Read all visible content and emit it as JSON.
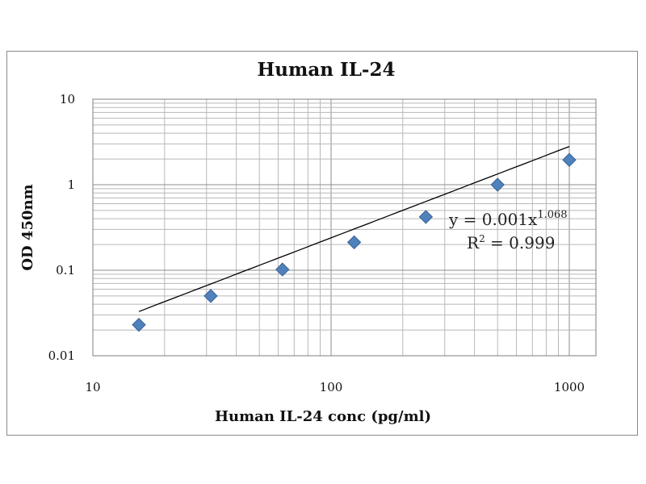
{
  "chart_data": {
    "type": "scatter",
    "title": "Human IL-24",
    "xlabel": "Human IL-24 conc (pg/ml)",
    "ylabel": "OD 450nm",
    "x_scale": "log",
    "y_scale": "log",
    "xlim": [
      10,
      1000
    ],
    "ylim": [
      0.01,
      10
    ],
    "x_ticks": [
      "10",
      "100",
      "1000"
    ],
    "y_ticks": [
      "10",
      "1",
      "0.1",
      "0.01"
    ],
    "grid": true,
    "legend": "none",
    "marker_color": "#4f81bd",
    "line_color": "#000000",
    "series": [
      {
        "x": [
          15.6,
          31.25,
          62.5,
          125,
          250,
          500,
          1000
        ],
        "y": [
          0.023,
          0.05,
          0.102,
          0.212,
          0.42,
          1.0,
          1.95
        ]
      }
    ],
    "trendline": {
      "type": "power",
      "coefficient": 0.001,
      "exponent": 1.068,
      "equation_text": "y = 0.001x",
      "exponent_text": "1.068",
      "r2_prefix": "R",
      "r2_sup": "2",
      "r2_value_text": " = 0.999"
    }
  }
}
